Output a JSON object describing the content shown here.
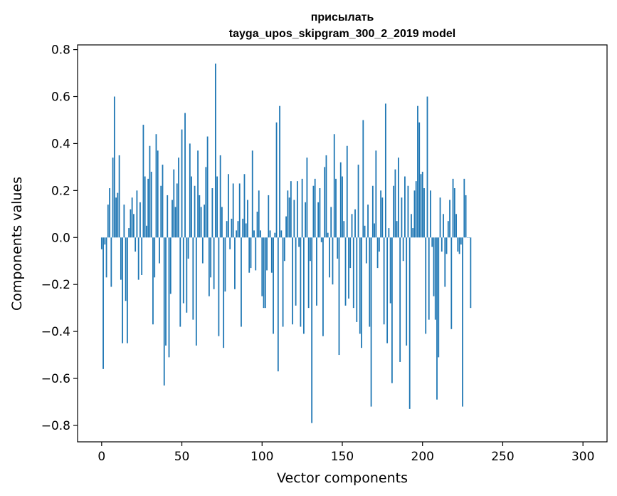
{
  "chart_data": {
    "type": "bar",
    "title": "присылать",
    "subtitle": "tayga_upos_skipgram_300_2_2019 model",
    "xlabel": "Vector components",
    "ylabel": "Components values",
    "xlim": [
      -15,
      315
    ],
    "ylim": [
      -0.87,
      0.82
    ],
    "xticks": [
      0,
      50,
      100,
      150,
      200,
      250,
      300
    ],
    "yticks": [
      0.8,
      0.6,
      0.4,
      0.2,
      0.0,
      -0.2,
      -0.4,
      -0.6,
      -0.8
    ],
    "xtick_labels": [
      "0",
      "50",
      "100",
      "150",
      "200",
      "250",
      "300"
    ],
    "ytick_labels": [
      "0.8",
      "0.6",
      "0.4",
      "0.2",
      "0.0",
      "−0.2",
      "−0.4",
      "−0.6",
      "−0.8"
    ],
    "bar_color": "#1f77b4",
    "grid": false,
    "x_start": 0,
    "values": [
      -0.05,
      -0.56,
      -0.03,
      -0.17,
      0.14,
      0.21,
      -0.21,
      0.34,
      0.6,
      0.17,
      0.19,
      0.35,
      -0.18,
      -0.45,
      0.14,
      -0.27,
      -0.45,
      0.04,
      0.12,
      0.17,
      0.1,
      -0.06,
      0.2,
      -0.18,
      0.15,
      -0.16,
      0.48,
      0.26,
      0.05,
      0.25,
      0.39,
      0.28,
      -0.37,
      -0.17,
      0.44,
      0.37,
      -0.11,
      0.22,
      0.31,
      -0.63,
      -0.46,
      0.18,
      -0.51,
      -0.24,
      0.16,
      0.29,
      0.13,
      0.23,
      0.34,
      -0.38,
      0.46,
      -0.28,
      0.53,
      -0.32,
      -0.09,
      0.4,
      0.26,
      -0.35,
      0.22,
      -0.46,
      0.37,
      0.18,
      0.13,
      -0.11,
      0.14,
      0.3,
      0.43,
      -0.25,
      -0.17,
      0.21,
      -0.22,
      0.74,
      0.26,
      -0.42,
      0.35,
      0.13,
      -0.47,
      -0.23,
      0.07,
      0.27,
      -0.05,
      0.08,
      0.23,
      -0.22,
      0.03,
      0.07,
      0.23,
      -0.38,
      0.08,
      0.27,
      0.06,
      0.16,
      -0.15,
      -0.13,
      0.37,
      0.03,
      -0.14,
      0.11,
      0.2,
      0.03,
      -0.25,
      -0.3,
      -0.3,
      -0.14,
      0.18,
      0.03,
      -0.15,
      -0.41,
      0.02,
      0.49,
      -0.57,
      0.56,
      0.03,
      -0.38,
      -0.1,
      0.09,
      0.2,
      0.17,
      0.24,
      -0.37,
      0.16,
      -0.29,
      0.24,
      -0.04,
      -0.38,
      0.25,
      -0.41,
      0.15,
      0.34,
      -0.3,
      -0.1,
      -0.79,
      0.22,
      0.25,
      -0.29,
      0.15,
      0.21,
      -0.02,
      -0.42,
      0.3,
      0.35,
      0.02,
      -0.17,
      0.13,
      -0.2,
      0.44,
      0.25,
      -0.09,
      -0.5,
      0.32,
      0.26,
      0.07,
      -0.29,
      0.39,
      -0.26,
      -0.13,
      0.1,
      -0.3,
      0.12,
      -0.36,
      0.31,
      -0.41,
      -0.47,
      0.5,
      0.05,
      -0.11,
      0.14,
      -0.38,
      -0.72,
      0.22,
      0.06,
      0.37,
      -0.13,
      -0.06,
      0.2,
      0.17,
      -0.37,
      0.57,
      -0.45,
      0.04,
      -0.28,
      -0.62,
      0.22,
      0.29,
      0.07,
      0.34,
      -0.53,
      0.17,
      -0.1,
      0.26,
      -0.46,
      0.22,
      -0.73,
      0.1,
      0.04,
      0.2,
      0.24,
      0.56,
      0.49,
      0.27,
      0.28,
      0.21,
      -0.41,
      0.6,
      -0.35,
      0.2,
      -0.04,
      -0.25,
      -0.35,
      -0.69,
      -0.51,
      0.17,
      -0.06,
      0.1,
      -0.21,
      -0.07,
      0.07,
      0.16,
      -0.39,
      0.25,
      0.21,
      0.1,
      -0.06,
      -0.07,
      -0.03,
      -0.72,
      0.25,
      0.18,
      0.0,
      0.0,
      -0.3
    ]
  }
}
